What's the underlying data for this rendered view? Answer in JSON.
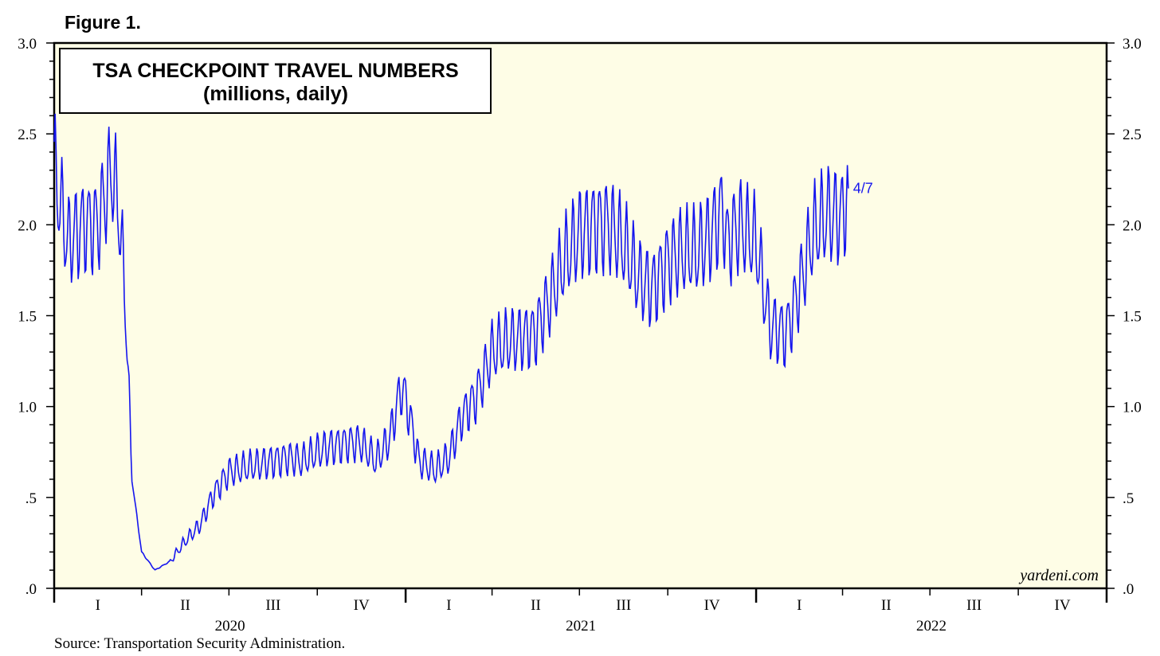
{
  "figure_label": "Figure 1.",
  "source": "Source: Transportation Security Administration.",
  "credit": "yardeni.com",
  "colors": {
    "plot_bg": "#fefde6",
    "line": "#1515ee",
    "frame": "#000000"
  },
  "chart_data": {
    "type": "line",
    "title": "TSA CHECKPOINT TRAVEL NUMBERS",
    "subtitle": "(millions, daily)",
    "ylim": [
      0,
      3.0
    ],
    "y_ticks": [
      ".0",
      ".5",
      "1.0",
      "1.5",
      "2.0",
      "2.5",
      "3.0"
    ],
    "y_tick_values": [
      0,
      0.5,
      1.0,
      1.5,
      2.0,
      2.5,
      3.0
    ],
    "x_range": [
      "2020-01-01",
      "2022-12-31"
    ],
    "quarters": [
      "I",
      "II",
      "III",
      "IV",
      "I",
      "II",
      "III",
      "IV",
      "I",
      "II",
      "III",
      "IV"
    ],
    "years": [
      "2020",
      "2021",
      "2022"
    ],
    "grid": false,
    "last_label": "4/7",
    "series": [
      {
        "unit": "millions",
        "points": [
          [
            "2020-01-01",
            2.3
          ],
          [
            "2020-01-15",
            1.9
          ],
          [
            "2020-02-01",
            2.0
          ],
          [
            "2020-02-15",
            2.0
          ],
          [
            "2020-03-01",
            2.3
          ],
          [
            "2020-03-08",
            2.1
          ],
          [
            "2020-03-15",
            1.6
          ],
          [
            "2020-03-22",
            0.6
          ],
          [
            "2020-04-01",
            0.2
          ],
          [
            "2020-04-15",
            0.1
          ],
          [
            "2020-05-01",
            0.15
          ],
          [
            "2020-05-15",
            0.25
          ],
          [
            "2020-06-01",
            0.35
          ],
          [
            "2020-06-15",
            0.52
          ],
          [
            "2020-07-01",
            0.64
          ],
          [
            "2020-07-15",
            0.66
          ],
          [
            "2020-08-01",
            0.68
          ],
          [
            "2020-08-15",
            0.7
          ],
          [
            "2020-09-01",
            0.72
          ],
          [
            "2020-09-15",
            0.7
          ],
          [
            "2020-10-01",
            0.75
          ],
          [
            "2020-10-15",
            0.78
          ],
          [
            "2020-11-01",
            0.8
          ],
          [
            "2020-11-15",
            0.8
          ],
          [
            "2020-12-01",
            0.7
          ],
          [
            "2020-12-15",
            0.82
          ],
          [
            "2020-12-27",
            1.1
          ],
          [
            "2021-01-01",
            1.05
          ],
          [
            "2021-01-15",
            0.7
          ],
          [
            "2021-02-01",
            0.65
          ],
          [
            "2021-02-15",
            0.72
          ],
          [
            "2021-03-01",
            0.95
          ],
          [
            "2021-03-15",
            1.05
          ],
          [
            "2021-04-01",
            1.3
          ],
          [
            "2021-04-15",
            1.35
          ],
          [
            "2021-05-01",
            1.38
          ],
          [
            "2021-05-15",
            1.4
          ],
          [
            "2021-06-01",
            1.6
          ],
          [
            "2021-06-15",
            1.8
          ],
          [
            "2021-07-01",
            1.95
          ],
          [
            "2021-07-15",
            2.0
          ],
          [
            "2021-08-01",
            2.0
          ],
          [
            "2021-08-15",
            1.9
          ],
          [
            "2021-09-01",
            1.7
          ],
          [
            "2021-09-15",
            1.65
          ],
          [
            "2021-10-01",
            1.8
          ],
          [
            "2021-10-15",
            1.85
          ],
          [
            "2021-11-01",
            1.85
          ],
          [
            "2021-11-15",
            1.95
          ],
          [
            "2021-11-28",
            2.1
          ],
          [
            "2021-12-01",
            1.9
          ],
          [
            "2021-12-15",
            2.0
          ],
          [
            "2022-01-01",
            1.9
          ],
          [
            "2022-01-15",
            1.45
          ],
          [
            "2022-02-01",
            1.4
          ],
          [
            "2022-02-15",
            1.65
          ],
          [
            "2022-03-01",
            1.95
          ],
          [
            "2022-03-15",
            2.05
          ],
          [
            "2022-04-01",
            2.05
          ],
          [
            "2022-04-07",
            2.2
          ]
        ]
      }
    ]
  }
}
